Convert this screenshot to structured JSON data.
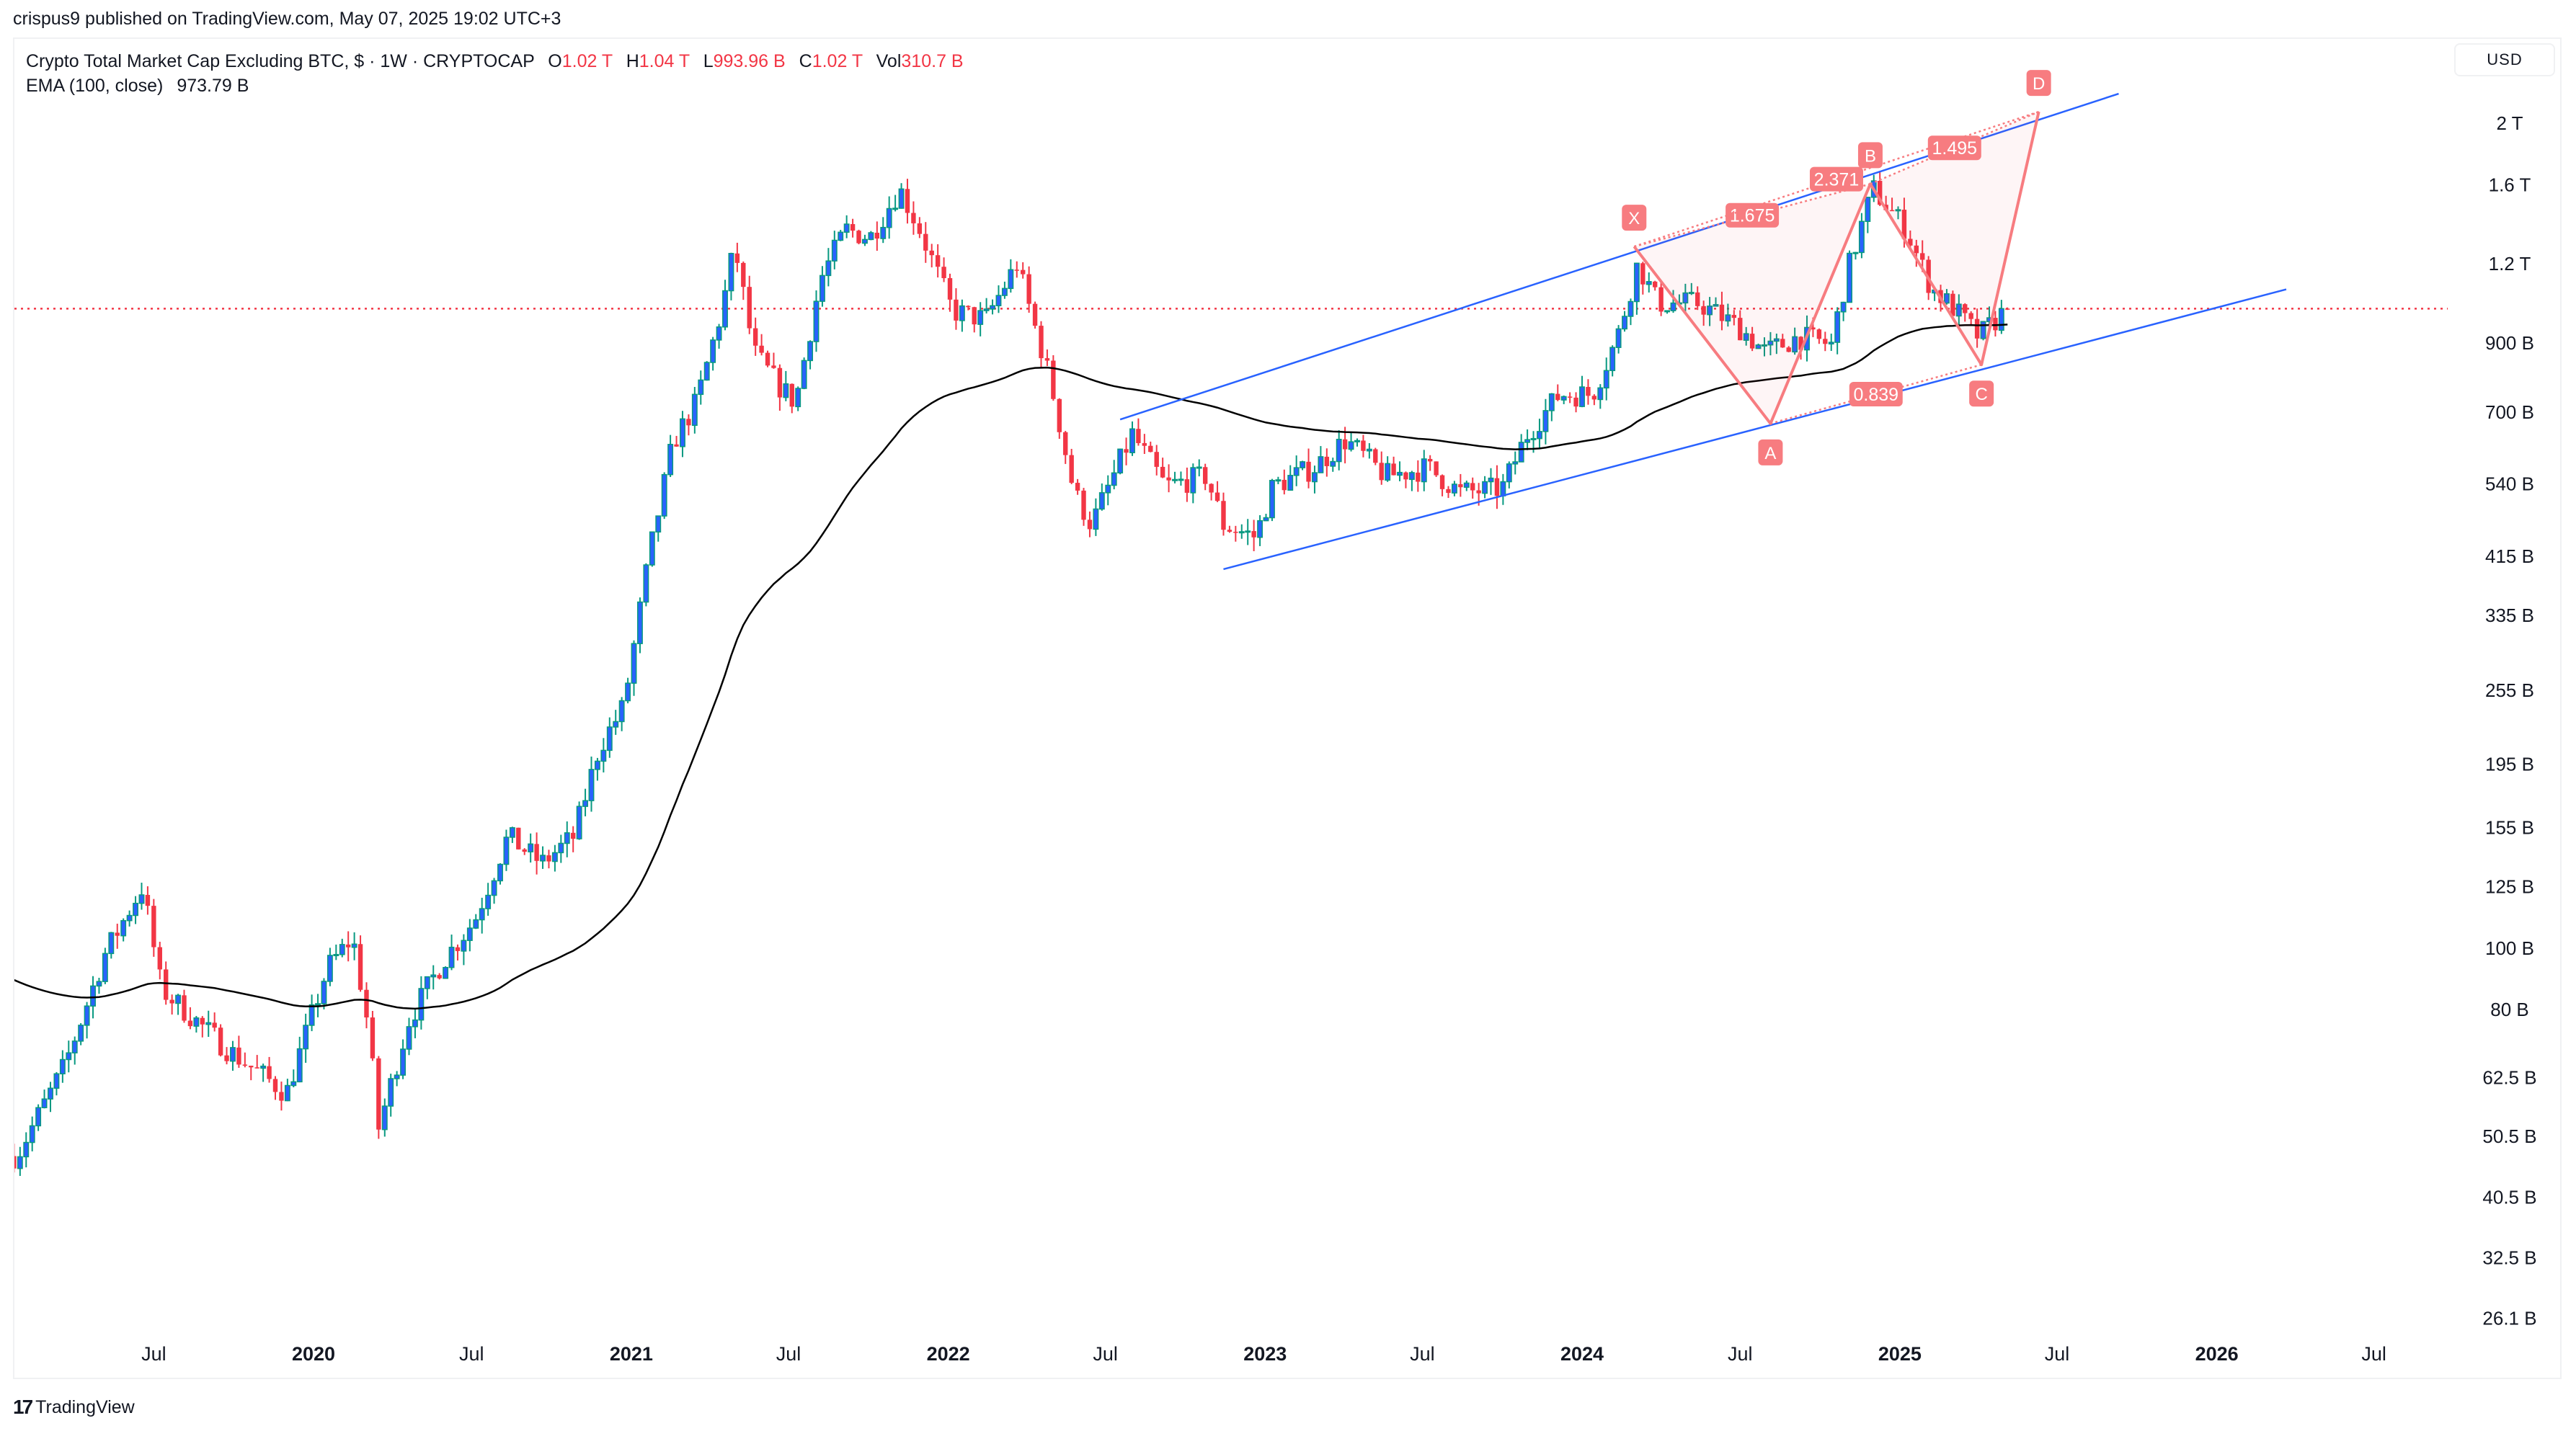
{
  "published": "crispus9 published on TradingView.com, May 07, 2025 19:02 UTC+3",
  "legend": {
    "title": "Crypto Total Market Cap Excluding BTC, $ · 1W · CRYPTOCAP",
    "o_label": "O",
    "o": "1.02 T",
    "h_label": "H",
    "h": "1.04 T",
    "l_label": "L",
    "l": "993.96 B",
    "c_label": "C",
    "c": "1.02 T",
    "vol_label": "Vol",
    "vol": "310.7 B",
    "ema_label": "EMA (100, close)",
    "ema_value": "973.79 B"
  },
  "currency_button": "USD",
  "footer": {
    "logo_text": "TradingView"
  },
  "colors": {
    "up_body": "#2962ff",
    "up_border": "#089981",
    "down": "#f23645",
    "ema": "#000000",
    "channel": "#2962ff",
    "pattern": "#f77c80",
    "last_price_line": "#f23645"
  },
  "chart_data": {
    "type": "candlestick",
    "title": "Crypto Total Market Cap Excluding BTC, $ · 1W · CRYPTOCAP",
    "y_scale": "log",
    "y_unit": "USD billions",
    "ylim": [
      26.1,
      2000
    ],
    "grid": false,
    "y_ticks": [
      {
        "value": 2000,
        "label": "2 T"
      },
      {
        "value": 1600,
        "label": "1.6 T"
      },
      {
        "value": 1200,
        "label": "1.2 T"
      },
      {
        "value": 900,
        "label": "900 B"
      },
      {
        "value": 700,
        "label": "700 B"
      },
      {
        "value": 540,
        "label": "540 B"
      },
      {
        "value": 415,
        "label": "415 B"
      },
      {
        "value": 335,
        "label": "335 B"
      },
      {
        "value": 255,
        "label": "255 B"
      },
      {
        "value": 195,
        "label": "195 B"
      },
      {
        "value": 155,
        "label": "155 B"
      },
      {
        "value": 125,
        "label": "125 B"
      },
      {
        "value": 100,
        "label": "100 B"
      },
      {
        "value": 80,
        "label": "80 B"
      },
      {
        "value": 62.5,
        "label": "62.5 B"
      },
      {
        "value": 50.5,
        "label": "50.5 B"
      },
      {
        "value": 40.5,
        "label": "40.5 B"
      },
      {
        "value": 32.5,
        "label": "32.5 B"
      },
      {
        "value": 26.1,
        "label": "26.1 B"
      }
    ],
    "x_ticks": [
      {
        "date": "2019-07-01",
        "label": "Jul"
      },
      {
        "date": "2020-01-01",
        "label": "2020"
      },
      {
        "date": "2020-07-01",
        "label": "Jul"
      },
      {
        "date": "2021-01-01",
        "label": "2021"
      },
      {
        "date": "2021-07-01",
        "label": "Jul"
      },
      {
        "date": "2022-01-01",
        "label": "2022"
      },
      {
        "date": "2022-07-01",
        "label": "Jul"
      },
      {
        "date": "2023-01-01",
        "label": "2023"
      },
      {
        "date": "2023-07-01",
        "label": "Jul"
      },
      {
        "date": "2024-01-01",
        "label": "2024"
      },
      {
        "date": "2024-07-01",
        "label": "Jul"
      },
      {
        "date": "2025-01-01",
        "label": "2025"
      },
      {
        "date": "2025-07-01",
        "label": "Jul"
      },
      {
        "date": "2026-01-01",
        "label": "2026"
      },
      {
        "date": "2026-07-01",
        "label": "Jul"
      }
    ],
    "approx_closes": [
      [
        "2019-01-24",
        47
      ],
      [
        "2019-03-20",
        65
      ],
      [
        "2019-05-06",
        98
      ],
      [
        "2019-06-18",
        125
      ],
      [
        "2019-07-10",
        86
      ],
      [
        "2019-09-25",
        69
      ],
      [
        "2019-12-01",
        59
      ],
      [
        "2020-01-17",
        93
      ],
      [
        "2020-02-15",
        104
      ],
      [
        "2020-03-04",
        75
      ],
      [
        "2020-03-16",
        52
      ],
      [
        "2020-04-20",
        77
      ],
      [
        "2020-05-28",
        95
      ],
      [
        "2020-07-05",
        111
      ],
      [
        "2020-08-12",
        150
      ],
      [
        "2020-09-20",
        136
      ],
      [
        "2020-10-27",
        150
      ],
      [
        "2020-11-25",
        207
      ],
      [
        "2020-12-23",
        240
      ],
      [
        "2021-01-21",
        411
      ],
      [
        "2021-02-18",
        626
      ],
      [
        "2021-03-17",
        725
      ],
      [
        "2021-04-15",
        1010
      ],
      [
        "2021-04-30",
        1280
      ],
      [
        "2021-05-22",
        870
      ],
      [
        "2021-06-20",
        770
      ],
      [
        "2021-07-09",
        725
      ],
      [
        "2021-08-07",
        1135
      ],
      [
        "2021-09-05",
        1360
      ],
      [
        "2021-10-03",
        1320
      ],
      [
        "2021-11-06",
        1575
      ],
      [
        "2021-11-29",
        1360
      ],
      [
        "2022-01-06",
        1010
      ],
      [
        "2022-02-13",
        980
      ],
      [
        "2022-03-21",
        1200
      ],
      [
        "2022-04-28",
        790
      ],
      [
        "2022-05-26",
        523
      ],
      [
        "2022-06-15",
        465
      ],
      [
        "2022-08-01",
        646
      ],
      [
        "2022-09-08",
        535
      ],
      [
        "2022-10-25",
        555
      ],
      [
        "2022-11-14",
        465
      ],
      [
        "2022-12-21",
        445
      ],
      [
        "2023-01-10",
        535
      ],
      [
        "2023-02-26",
        572
      ],
      [
        "2023-04-04",
        633
      ],
      [
        "2023-05-20",
        555
      ],
      [
        "2023-07-07",
        572
      ],
      [
        "2023-08-14",
        523
      ],
      [
        "2023-10-01",
        530
      ],
      [
        "2023-10-29",
        643
      ],
      [
        "2023-12-06",
        747
      ],
      [
        "2024-01-13",
        747
      ],
      [
        "2024-02-11",
        920
      ],
      [
        "2024-03-05",
        1200
      ],
      [
        "2024-03-28",
        1040
      ],
      [
        "2024-05-15",
        1040
      ],
      [
        "2024-07-01",
        950
      ],
      [
        "2024-07-30",
        870
      ],
      [
        "2024-09-06",
        920
      ],
      [
        "2024-10-14",
        895
      ],
      [
        "2024-11-02",
        1170
      ],
      [
        "2024-12-01",
        1575
      ],
      [
        "2025-01-08",
        1360
      ],
      [
        "2025-02-06",
        1100
      ],
      [
        "2025-03-04",
        1020
      ],
      [
        "2025-04-02",
        920
      ],
      [
        "2025-05-05",
        1020
      ]
    ],
    "last_price": 1020,
    "ema_period": 100,
    "channel": {
      "upper": [
        [
          "2022-07-18",
          682
        ],
        [
          "2025-09-10",
          2226
        ]
      ],
      "lower": [
        [
          "2022-11-14",
          396
        ],
        [
          "2026-03-22",
          1094
        ]
      ]
    },
    "xabcd_pattern": {
      "points": [
        {
          "label": "X",
          "date": "2024-03-01",
          "price": 1278
        },
        {
          "label": "A",
          "date": "2024-08-05",
          "price": 672
        },
        {
          "label": "B",
          "date": "2024-11-28",
          "price": 1604
        },
        {
          "label": "C",
          "date": "2025-04-05",
          "price": 832
        },
        {
          "label": "D",
          "date": "2025-06-10",
          "price": 2085
        }
      ],
      "ratios": [
        {
          "from": "X",
          "to": "B",
          "value": "1.675"
        },
        {
          "from": "X",
          "to": "D",
          "value": "2.371"
        },
        {
          "from": "A",
          "to": "C",
          "value": "0.839"
        },
        {
          "from": "B",
          "to": "D",
          "value": "1.495"
        }
      ]
    }
  }
}
